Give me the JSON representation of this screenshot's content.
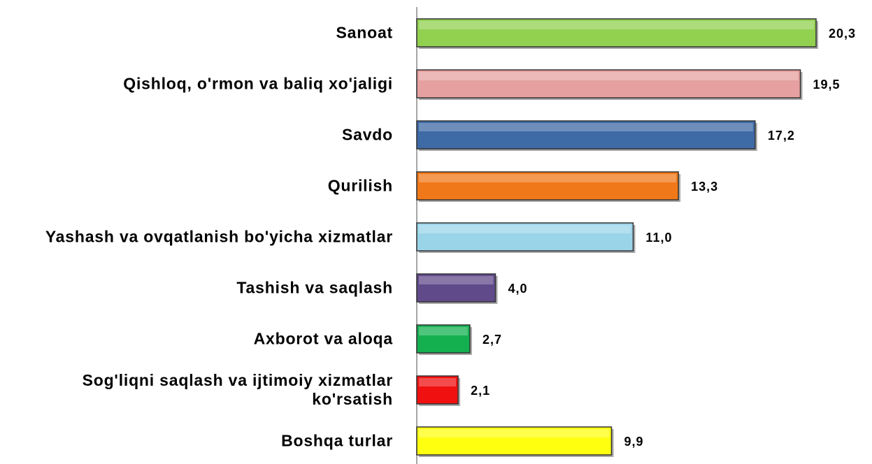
{
  "chart_data": {
    "type": "bar",
    "orientation": "horizontal",
    "categories": [
      "Sanoat",
      "Qishloq, o'rmon va baliq xo'jaligi",
      "Savdo",
      "Qurilish",
      "Yashash va ovqatlanish bo'yicha xizmatlar",
      "Tashish va saqlash",
      "Axborot va aloqa",
      "Sog'liqni saqlash va ijtimoiy xizmatlar ko'rsatish",
      "Boshqa turlar"
    ],
    "values": [
      20.3,
      19.5,
      17.2,
      13.3,
      11.0,
      4.0,
      2.7,
      2.1,
      9.9
    ],
    "value_labels": [
      "20,3",
      "19,5",
      "17,2",
      "13,3",
      "11,0",
      "4,0",
      "2,7",
      "2,1",
      "9,9"
    ],
    "colors": [
      "#92d050",
      "#e6a0a0",
      "#3e6aa6",
      "#f07818",
      "#9ad4e8",
      "#604a8a",
      "#14b050",
      "#f01010",
      "#ffff10"
    ]
  }
}
